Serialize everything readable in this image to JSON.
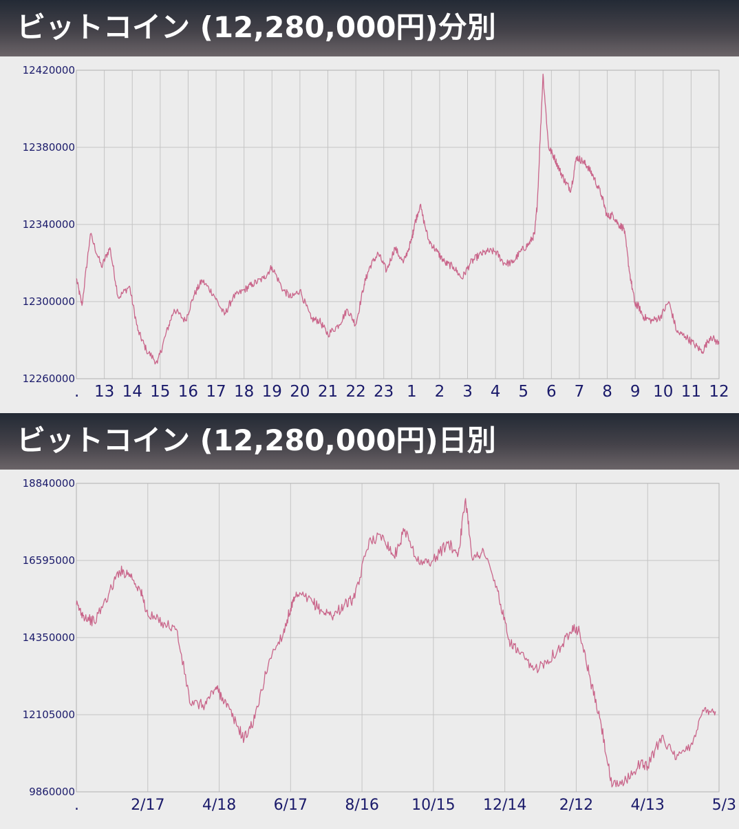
{
  "minute_panel": {
    "title": "ビットコイン (12,280,000円)分別"
  },
  "daily_panel": {
    "title": "ビットコイン (12,280,000円)日別"
  },
  "colors": {
    "line": "#c9658a",
    "grid": "#c4c4c4",
    "axis_text": "#1a1a6a",
    "plot_bg": "#ececec"
  },
  "chart_data": [
    {
      "type": "line",
      "yticks": [
        "12420000",
        "12380000",
        "12340000",
        "12300000",
        "12260000"
      ],
      "ylim": [
        12260000,
        12420000
      ],
      "xticks": [
        ".",
        "13",
        "14",
        "15",
        "16",
        "17",
        "18",
        "19",
        "20",
        "21",
        "22",
        "23",
        "1",
        "2",
        "3",
        "4",
        "5",
        "6",
        "7",
        "8",
        "9",
        "10",
        "11",
        "12"
      ],
      "grid": true,
      "series": [
        {
          "x": [
            0,
            0.2,
            0.5,
            0.9,
            1.2,
            1.5,
            1.9,
            2.2,
            2.5,
            2.9,
            3.2,
            3.5,
            3.9,
            4.2,
            4.5,
            4.9,
            5.3,
            5.6,
            6.0,
            6.3,
            6.7,
            7.0,
            7.4,
            7.7,
            8.0,
            8.4,
            8.7,
            9.0,
            9.4,
            9.7,
            10.0,
            10.3,
            10.5,
            10.8,
            11.1,
            11.4,
            11.7,
            12.0,
            12.1,
            12.3,
            12.6,
            12.9,
            13.2,
            13.5,
            13.8,
            14.1,
            14.4,
            14.7,
            15.0,
            15.3,
            15.6,
            15.9,
            16.2,
            16.4,
            16.5,
            16.7,
            16.9,
            17.1,
            17.3,
            17.5,
            17.7,
            17.9,
            18.1,
            18.3,
            18.5,
            18.8,
            19.0,
            19.2,
            19.4,
            19.6,
            19.8,
            20.0,
            20.1,
            20.3,
            20.6,
            20.9,
            21.2,
            21.5,
            21.8,
            22.1,
            22.4,
            22.7,
            23.0
          ],
          "y": [
            12312000,
            12298000,
            12335000,
            12318000,
            12328000,
            12302000,
            12308000,
            12285000,
            12275000,
            12268000,
            12283000,
            12296000,
            12290000,
            12303000,
            12311000,
            12304000,
            12293000,
            12302000,
            12306000,
            12309000,
            12312000,
            12318000,
            12306000,
            12302000,
            12306000,
            12291000,
            12290000,
            12283000,
            12288000,
            12296000,
            12288000,
            12309000,
            12318000,
            12325000,
            12316000,
            12328000,
            12320000,
            12332000,
            12340000,
            12350000,
            12332000,
            12326000,
            12320000,
            12318000,
            12312000,
            12320000,
            12324000,
            12326000,
            12326000,
            12320000,
            12320000,
            12326000,
            12330000,
            12335000,
            12352000,
            12418000,
            12380000,
            12375000,
            12368000,
            12362000,
            12358000,
            12375000,
            12373000,
            12370000,
            12365000,
            12355000,
            12344000,
            12345000,
            12340000,
            12338000,
            12315000,
            12298000,
            12298000,
            12292000,
            12290000,
            12292000,
            12300000,
            12284000,
            12282000,
            12278000,
            12274000,
            12282000,
            12278000
          ]
        }
      ]
    },
    {
      "type": "line",
      "yticks": [
        "18840000",
        "16595000",
        "14350000",
        "12105000",
        "9860000"
      ],
      "ylim": [
        9860000,
        18840000
      ],
      "xticks": [
        ".",
        "2/17",
        "4/18",
        "6/17",
        "8/16",
        "10/15",
        "12/14",
        "2/12",
        "4/13",
        "5/3"
      ],
      "grid": true,
      "series": [
        {
          "x": [
            0,
            0.1,
            0.25,
            0.45,
            0.6,
            0.75,
            0.9,
            1.0,
            1.2,
            1.4,
            1.6,
            1.8,
            1.95,
            2.05,
            2.2,
            2.35,
            2.5,
            2.7,
            2.9,
            3.0,
            3.1,
            3.3,
            3.45,
            3.6,
            3.75,
            3.9,
            4.1,
            4.3,
            4.45,
            4.6,
            4.8,
            5.0,
            5.2,
            5.35,
            5.45,
            5.55,
            5.7,
            5.9,
            6.05,
            6.2,
            6.4,
            6.6,
            6.8,
            6.95,
            7.05,
            7.2,
            7.35,
            7.5,
            7.7,
            7.9,
            8.0,
            8.2,
            8.4,
            8.6,
            8.8,
            8.95
          ],
          "y": [
            15300000,
            15000000,
            14800000,
            15600000,
            16300000,
            16200000,
            15700000,
            15000000,
            14800000,
            14600000,
            12400000,
            12400000,
            12900000,
            12600000,
            12000000,
            11400000,
            12000000,
            13700000,
            14500000,
            15200000,
            15600000,
            15400000,
            15100000,
            15000000,
            15300000,
            15500000,
            17200000,
            17300000,
            16700000,
            17500000,
            16500000,
            16600000,
            17100000,
            16800000,
            18400000,
            16600000,
            16900000,
            15700000,
            14300000,
            13900000,
            13400000,
            13700000,
            14100000,
            14700000,
            14500000,
            13100000,
            11800000,
            10000000,
            10200000,
            10700000,
            10600000,
            11500000,
            10800000,
            11200000,
            12300000,
            12200000
          ]
        }
      ]
    }
  ]
}
